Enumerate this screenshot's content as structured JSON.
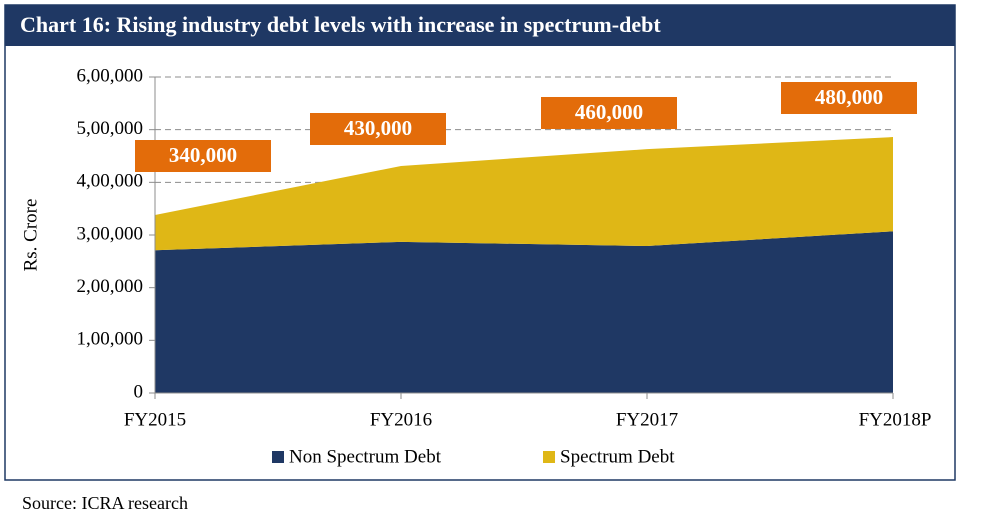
{
  "chart_data": {
    "type": "stacked_area",
    "title": "Chart 16: Rising industry debt levels with increase in spectrum-debt",
    "y_label": "Rs. Crore",
    "categories": [
      "FY2015",
      "FY2016",
      "FY2017",
      "FY2018P"
    ],
    "series": [
      {
        "name": "Non Spectrum Debt",
        "color": "#1f3864",
        "values": [
          271000,
          287000,
          279000,
          307000
        ]
      },
      {
        "name": "Spectrum Debt",
        "color": "#dfb716",
        "values": [
          67000,
          144000,
          184000,
          179000
        ]
      }
    ],
    "annotations": [
      "340,000",
      "430,000",
      "460,000",
      "480,000"
    ],
    "annotation_color": "#e36c0a",
    "ylim": [
      0,
      600000
    ],
    "yticks": [
      0,
      {
        "value": 100000,
        "label": "1,00,000"
      },
      {
        "value": 200000,
        "label": "2,00,000"
      },
      {
        "value": 300000,
        "label": "3,00,000"
      },
      {
        "value": 400000,
        "label": "4,00,000"
      },
      {
        "value": 500000,
        "label": "5,00,000"
      },
      {
        "value": 600000,
        "label": "6,00,000"
      }
    ],
    "grid": true,
    "legend": "bottom",
    "source": "Source: ICRA research"
  }
}
